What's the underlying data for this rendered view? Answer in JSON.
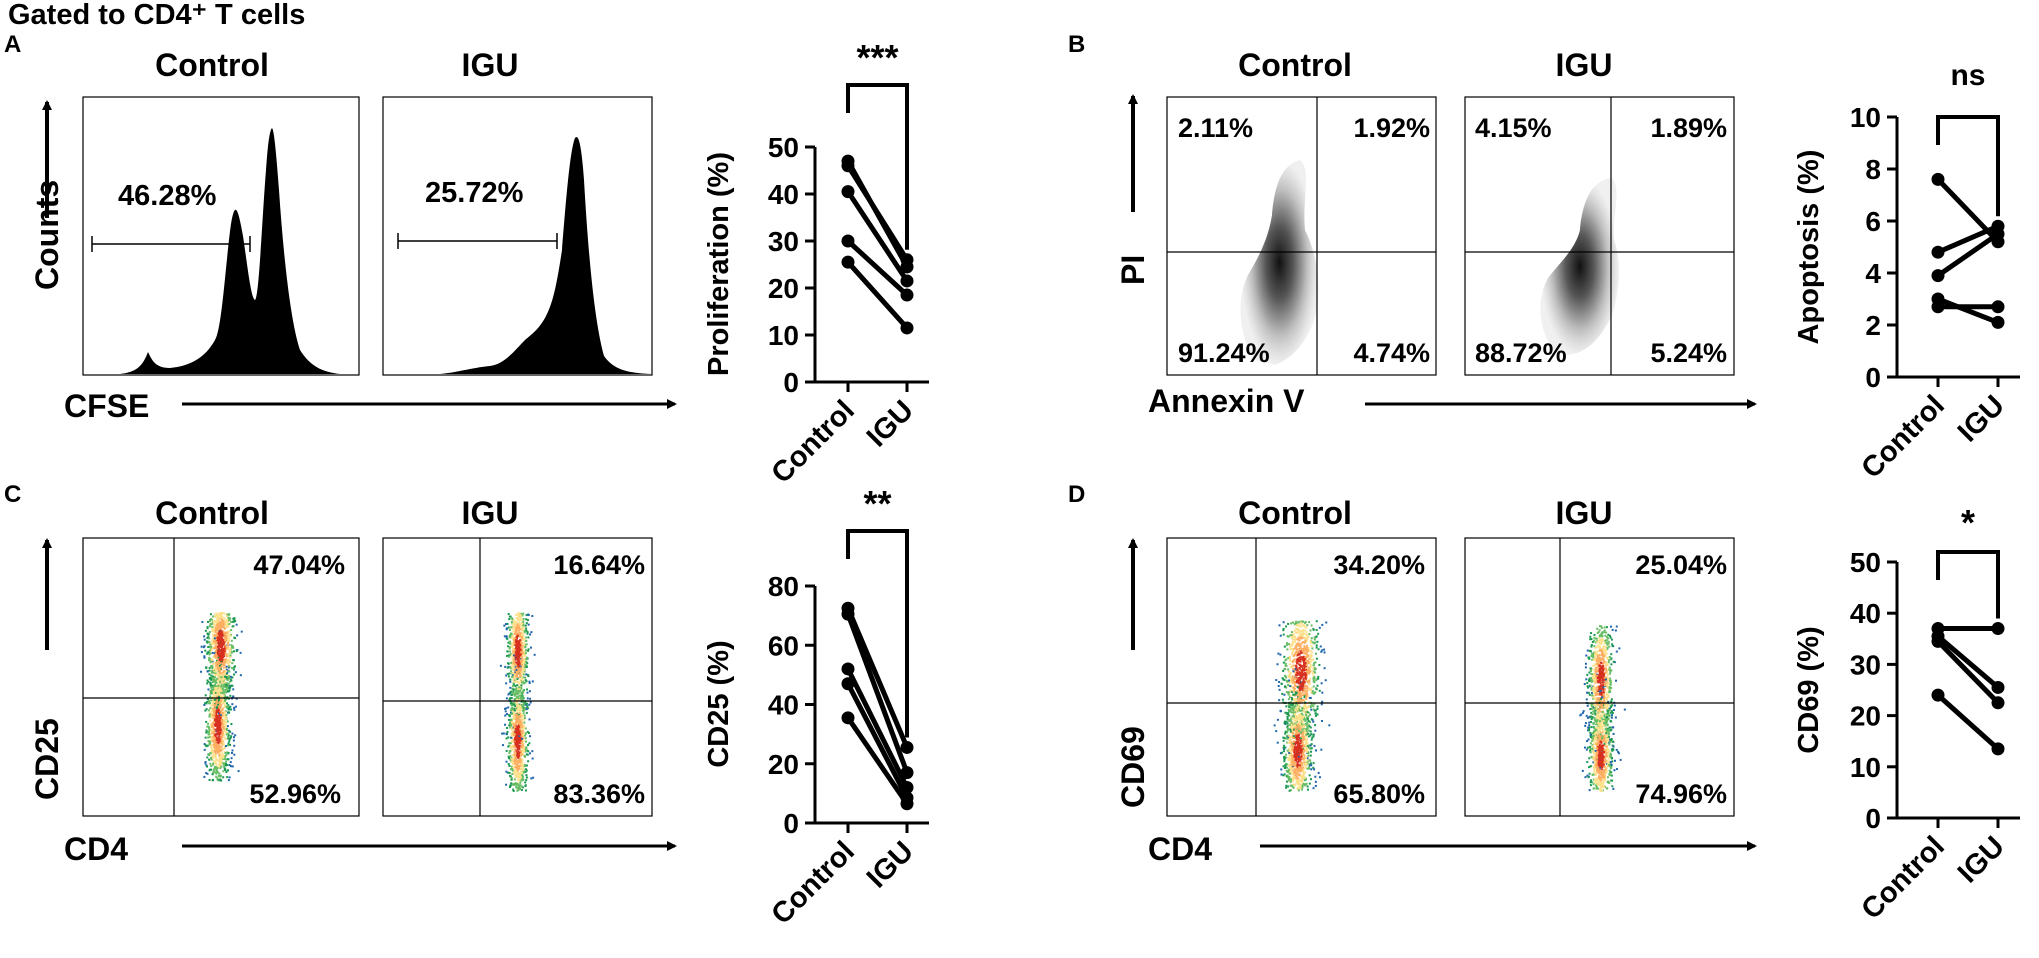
{
  "header": "Gated to CD4⁺ T cells",
  "panels": {
    "A": {
      "letter": "A",
      "left_title": "Control",
      "right_title": "IGU",
      "ylabel": "Counts",
      "xlabel": "CFSE",
      "gate_left": "46.28%",
      "gate_right": "25.72%"
    },
    "B": {
      "letter": "B",
      "left_title": "Control",
      "right_title": "IGU",
      "ylabel": "PI",
      "xlabel": "Annexin V",
      "left_q": {
        "ul": "2.11%",
        "ur": "1.92%",
        "ll": "91.24%",
        "lr": "4.74%"
      },
      "right_q": {
        "ul": "4.15%",
        "ur": "1.89%",
        "ll": "88.72%",
        "lr": "5.24%"
      }
    },
    "C": {
      "letter": "C",
      "left_title": "Control",
      "right_title": "IGU",
      "ylabel": "CD25",
      "xlabel": "CD4",
      "left_q": {
        "ur": "47.04%",
        "lr": "52.96%"
      },
      "right_q": {
        "ur": "16.64%",
        "lr": "83.36%"
      }
    },
    "D": {
      "letter": "D",
      "left_title": "Control",
      "right_title": "IGU",
      "ylabel": "CD69",
      "xlabel": "CD4",
      "left_q": {
        "ur": "34.20%",
        "lr": "65.80%"
      },
      "right_q": {
        "ur": "25.04%",
        "lr": "74.96%"
      }
    }
  },
  "chart_data": [
    {
      "id": "A",
      "type": "line",
      "title": "",
      "ylabel": "Proliferation (%)",
      "categories": [
        "Control",
        "IGU"
      ],
      "ylim": [
        0,
        50
      ],
      "yticks": [
        0,
        10,
        20,
        30,
        40,
        50
      ],
      "significance": "***",
      "pairs": [
        [
          47,
          24.5
        ],
        [
          46,
          26
        ],
        [
          40.5,
          21.5
        ],
        [
          30,
          18.5
        ],
        [
          25.5,
          11.5
        ]
      ]
    },
    {
      "id": "B",
      "type": "line",
      "title": "",
      "ylabel": "Apoptosis (%)",
      "categories": [
        "Control",
        "IGU"
      ],
      "ylim": [
        0,
        10
      ],
      "yticks": [
        0,
        2,
        4,
        6,
        8,
        10
      ],
      "significance": "ns",
      "pairs": [
        [
          7.6,
          5.2
        ],
        [
          4.8,
          5.8
        ],
        [
          3.9,
          5.5
        ],
        [
          3.0,
          2.1
        ],
        [
          2.7,
          2.7
        ]
      ]
    },
    {
      "id": "C",
      "type": "line",
      "title": "",
      "ylabel": "CD25 (%)",
      "categories": [
        "Control",
        "IGU"
      ],
      "ylim": [
        0,
        80
      ],
      "yticks": [
        0,
        20,
        40,
        60,
        80
      ],
      "significance": "**",
      "pairs": [
        [
          72.5,
          25.5
        ],
        [
          70.5,
          17
        ],
        [
          52,
          12
        ],
        [
          47,
          8.5
        ],
        [
          35.5,
          6.5
        ]
      ]
    },
    {
      "id": "D",
      "type": "line",
      "title": "",
      "ylabel": "CD69 (%)",
      "categories": [
        "Control",
        "IGU"
      ],
      "ylim": [
        0,
        50
      ],
      "yticks": [
        0,
        10,
        20,
        30,
        40,
        50
      ],
      "significance": "*",
      "pairs": [
        [
          37,
          37
        ],
        [
          35.5,
          25.5
        ],
        [
          34.5,
          22.5
        ],
        [
          24,
          13.5
        ]
      ]
    }
  ]
}
